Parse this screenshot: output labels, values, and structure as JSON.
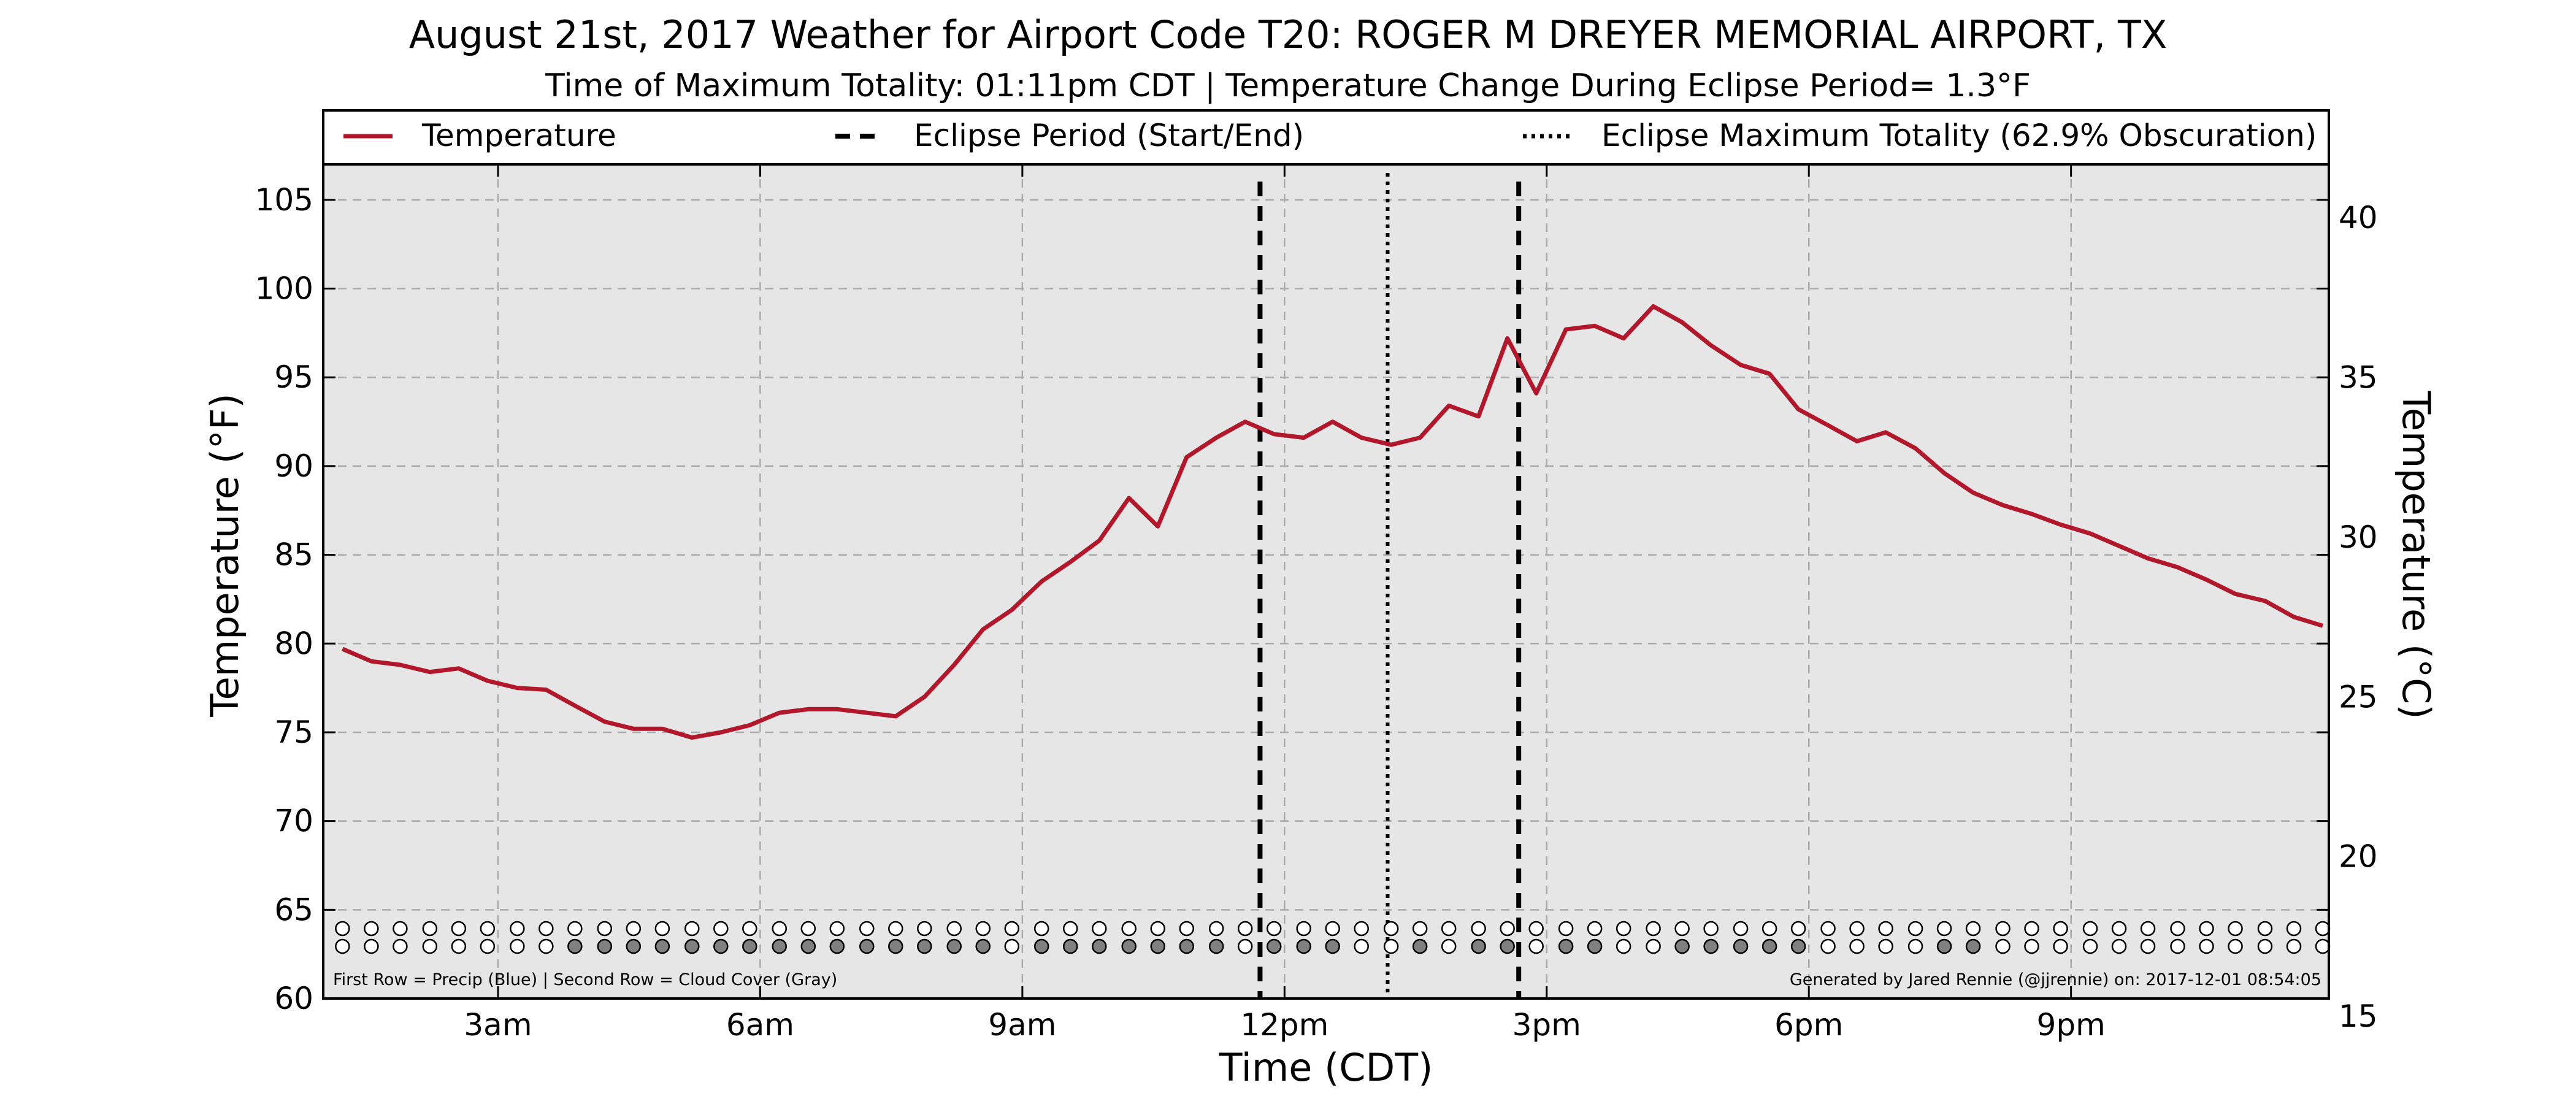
{
  "chart_data": {
    "type": "line",
    "title": "August 21st, 2017 Weather for Airport Code T20: ROGER M DREYER MEMORIAL AIRPORT, TX",
    "subtitle": "Time of Maximum Totality: 01:11pm CDT | Temperature Change During Eclipse Period= 1.3°F",
    "xlabel": "Time (CDT)",
    "ylabel": "Temperature (°F)",
    "ylabel_right": "Temperature (°C)",
    "x_ticks": [
      {
        "hour": 3,
        "label": "3am"
      },
      {
        "hour": 6,
        "label": "6am"
      },
      {
        "hour": 9,
        "label": "9am"
      },
      {
        "hour": 12,
        "label": "12pm"
      },
      {
        "hour": 15,
        "label": "3pm"
      },
      {
        "hour": 18,
        "label": "6pm"
      },
      {
        "hour": 21,
        "label": "9pm"
      }
    ],
    "xlim_hours": [
      1.0,
      23.95
    ],
    "ylim": [
      60,
      107
    ],
    "y_ticks": [
      60,
      65,
      70,
      75,
      80,
      85,
      90,
      95,
      100,
      105
    ],
    "y2lim": [
      15.56,
      41.67
    ],
    "y2_ticks": [
      15,
      20,
      25,
      30,
      35,
      40
    ],
    "grid": true,
    "legend_placement": "top",
    "colors": {
      "temperature": "#b2182b",
      "plot_bg": "#e6e6e6",
      "grid": "#aaaaaa",
      "cloud_filled": "#808080",
      "precip_filled": "#2166ac"
    },
    "legend": [
      {
        "label": "Temperature",
        "style": "solid"
      },
      {
        "label": "Eclipse Period (Start/End)",
        "style": "dashed"
      },
      {
        "label": "Eclipse Maximum Totality (62.9% Obscuration)",
        "style": "dotted"
      }
    ],
    "eclipse": {
      "start_hour": 11.72,
      "end_hour": 14.68,
      "max_hour": 13.18
    },
    "series": [
      {
        "name": "Temperature",
        "x": [
          1.22,
          1.55,
          1.88,
          2.22,
          2.55,
          2.88,
          3.22,
          3.55,
          3.88,
          4.22,
          4.55,
          4.88,
          5.22,
          5.55,
          5.88,
          6.22,
          6.55,
          6.88,
          7.22,
          7.55,
          7.88,
          8.22,
          8.55,
          8.88,
          9.22,
          9.55,
          9.88,
          10.22,
          10.55,
          10.88,
          11.22,
          11.55,
          11.88,
          12.22,
          12.55,
          12.88,
          13.22,
          13.55,
          13.88,
          14.22,
          14.55,
          14.88,
          15.22,
          15.55,
          15.88,
          16.22,
          16.55,
          16.88,
          17.22,
          17.55,
          17.88,
          18.22,
          18.55,
          18.88,
          19.22,
          19.55,
          19.88,
          20.22,
          20.55,
          20.88,
          21.22,
          21.55,
          21.88,
          22.22,
          22.55,
          22.88,
          23.22,
          23.55,
          23.88
        ],
        "values": [
          79.7,
          79.0,
          78.8,
          78.4,
          78.6,
          77.9,
          77.5,
          77.4,
          76.5,
          75.6,
          75.2,
          75.2,
          74.7,
          75.0,
          75.4,
          76.1,
          76.3,
          76.3,
          76.1,
          75.9,
          77.0,
          78.8,
          80.8,
          81.9,
          83.5,
          84.6,
          85.8,
          88.2,
          86.6,
          90.5,
          91.6,
          92.5,
          91.8,
          91.6,
          92.5,
          91.6,
          91.2,
          91.6,
          93.4,
          92.8,
          97.2,
          94.1,
          97.7,
          97.9,
          97.2,
          99.0,
          98.1,
          96.8,
          95.7,
          95.2,
          93.2,
          92.3,
          91.4,
          91.9,
          91.0,
          89.6,
          88.5,
          87.8,
          87.3,
          86.7,
          86.2,
          85.5,
          84.8,
          84.3,
          83.6,
          82.8,
          82.4,
          81.5,
          81.0
        ]
      }
    ],
    "status_rows": {
      "precip_filled": [],
      "cloud_filled": [
        8,
        9,
        10,
        11,
        12,
        13,
        14,
        15,
        16,
        17,
        18,
        19,
        20,
        21,
        22,
        24,
        25,
        26,
        27,
        28,
        29,
        30,
        32,
        33,
        34,
        37,
        39,
        40,
        42,
        43,
        46,
        47,
        48,
        49,
        50,
        55,
        56
      ],
      "count": 69
    },
    "footnote_left": "First Row = Precip (Blue) | Second Row = Cloud Cover (Gray)",
    "footnote_right": "Generated by Jared Rennie (@jjrennie) on: 2017-12-01 08:54:05"
  }
}
